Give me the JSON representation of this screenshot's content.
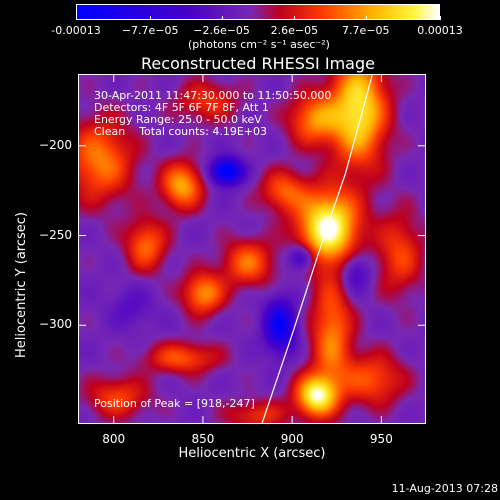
{
  "chart_data": {
    "type": "heatmap",
    "title": "Reconstructed RHESSI Image",
    "xlabel": "Heliocentric X (arcsec)",
    "ylabel": "Heliocentric Y (arcsec)",
    "xlim": [
      780,
      975
    ],
    "ylim": [
      -355,
      -160
    ],
    "x_ticks": [
      800,
      850,
      900,
      950
    ],
    "y_ticks": [
      -200,
      -250,
      -300
    ],
    "colorbar": {
      "min": -0.00013,
      "max": 0.00013,
      "tick_values": [
        -0.00013,
        -7.7e-05,
        -2.6e-05,
        2.6e-05,
        7.7e-05,
        0.00013
      ],
      "tick_labels": [
        "-0.00013",
        "−7.7e−05",
        "−2.6e−05",
        "2.6e−05",
        "7.7e−05",
        "0.00013"
      ],
      "unit_label": "(photons cm⁻² s⁻¹ asec⁻²)"
    },
    "info_lines": [
      "30-Apr-2011 11:47:30.000 to 11:50:50.000",
      "Detectors: 4F 5F 6F 7F 8F, Att 1",
      "Energy Range: 25.0 - 50.0 keV",
      "Clean    Total counts: 4.19E+03"
    ],
    "peak_label": "Position of Peak = [918,-247]",
    "peak": [
      918,
      -247
    ],
    "limb_curve": [
      [
        883,
        -355
      ],
      [
        900,
        -305
      ],
      [
        918,
        -250
      ],
      [
        930,
        -215
      ],
      [
        945,
        -160
      ]
    ],
    "sources": [
      {
        "x": 920,
        "y": -245,
        "sx": 12,
        "sy": 14,
        "a": 1.0
      },
      {
        "x": 937,
        "y": -180,
        "sx": 11,
        "sy": 22,
        "a": 0.85
      },
      {
        "x": 912,
        "y": -185,
        "sx": 10,
        "sy": 10,
        "a": 0.55
      },
      {
        "x": 792,
        "y": -208,
        "sx": 13,
        "sy": 16,
        "a": 0.55
      },
      {
        "x": 838,
        "y": -222,
        "sx": 8,
        "sy": 9,
        "a": 0.65
      },
      {
        "x": 895,
        "y": -225,
        "sx": 9,
        "sy": 8,
        "a": 0.45
      },
      {
        "x": 818,
        "y": -255,
        "sx": 8,
        "sy": 10,
        "a": 0.5
      },
      {
        "x": 875,
        "y": -265,
        "sx": 10,
        "sy": 9,
        "a": 0.5
      },
      {
        "x": 850,
        "y": -282,
        "sx": 8,
        "sy": 8,
        "a": 0.6
      },
      {
        "x": 838,
        "y": -318,
        "sx": 14,
        "sy": 6,
        "a": 0.45
      },
      {
        "x": 922,
        "y": -305,
        "sx": 8,
        "sy": 22,
        "a": 0.55
      },
      {
        "x": 945,
        "y": -330,
        "sx": 12,
        "sy": 10,
        "a": 0.45
      },
      {
        "x": 913,
        "y": -339,
        "sx": 8,
        "sy": 8,
        "a": 0.9
      },
      {
        "x": 802,
        "y": -340,
        "sx": 12,
        "sy": 8,
        "a": 0.4
      },
      {
        "x": 880,
        "y": -350,
        "sx": 12,
        "sy": 6,
        "a": 0.35
      },
      {
        "x": 960,
        "y": -260,
        "sx": 9,
        "sy": 16,
        "a": 0.4
      },
      {
        "x": 852,
        "y": -175,
        "sx": 12,
        "sy": 8,
        "a": 0.35
      },
      {
        "x": 863,
        "y": -214,
        "sx": 6,
        "sy": 5,
        "a": -1.0
      },
      {
        "x": 893,
        "y": -300,
        "sx": 6,
        "sy": 10,
        "a": -0.8
      },
      {
        "x": 905,
        "y": -262,
        "sx": 5,
        "sy": 5,
        "a": -0.5
      },
      {
        "x": 935,
        "y": -270,
        "sx": 6,
        "sy": 8,
        "a": -0.35
      },
      {
        "x": 810,
        "y": -290,
        "sx": 8,
        "sy": 8,
        "a": -0.2
      }
    ]
  },
  "timestamp": "11-Aug-2013 07:28"
}
